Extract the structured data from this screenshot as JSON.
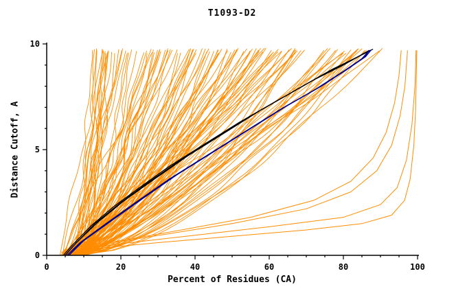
{
  "chart_data": {
    "type": "line",
    "title": "T1093-D2",
    "xlabel": "Percent of Residues (CA)",
    "ylabel": "Distance Cutoff, A",
    "xlim": [
      0,
      100
    ],
    "ylim": [
      0,
      10
    ],
    "x_ticks": [
      0,
      20,
      40,
      60,
      80,
      100
    ],
    "y_ticks": [
      0,
      5,
      10
    ],
    "x_minor_step": 5,
    "y_minor_step": 1,
    "grid": false,
    "legend": "none",
    "colors": {
      "ensemble": "#ff8c00",
      "outlier": "#ff8c00",
      "highlight_black": "#000000",
      "highlight_blue": "#00008b",
      "axis": "#000000",
      "background": "#ffffff"
    },
    "ensemble": {
      "name": "model-curves-orange",
      "count": 118,
      "seed": 7,
      "x_start_range": [
        3.5,
        10.5
      ],
      "x_top_min": 12,
      "x_top_max": 91,
      "x_top_bias": 1.15,
      "shape_exponent_range": [
        0.5,
        1.02
      ],
      "y_top_range": [
        9.55,
        9.8
      ]
    },
    "outlier_curves": [
      {
        "name": "low-quality-model-1",
        "points": [
          [
            4,
            0.1
          ],
          [
            15,
            0.35
          ],
          [
            30,
            0.6
          ],
          [
            50,
            0.9
          ],
          [
            70,
            1.2
          ],
          [
            85,
            1.5
          ],
          [
            93,
            1.9
          ],
          [
            96.5,
            2.6
          ],
          [
            98,
            3.6
          ],
          [
            99,
            5.2
          ],
          [
            99.5,
            7.0
          ],
          [
            99.8,
            9.7
          ]
        ]
      },
      {
        "name": "low-quality-model-2",
        "points": [
          [
            4,
            0.15
          ],
          [
            20,
            0.55
          ],
          [
            40,
            0.95
          ],
          [
            60,
            1.35
          ],
          [
            80,
            1.8
          ],
          [
            90,
            2.4
          ],
          [
            94.5,
            3.2
          ],
          [
            97,
            4.5
          ],
          [
            98.5,
            6.2
          ],
          [
            99.3,
            8.0
          ],
          [
            99.6,
            9.7
          ]
        ]
      },
      {
        "name": "low-quality-model-3",
        "points": [
          [
            4.5,
            0.2
          ],
          [
            25,
            0.8
          ],
          [
            50,
            1.5
          ],
          [
            70,
            2.2
          ],
          [
            82,
            3.0
          ],
          [
            89,
            4.0
          ],
          [
            93,
            5.2
          ],
          [
            95.3,
            6.6
          ],
          [
            96.6,
            8.0
          ],
          [
            97.3,
            9.7
          ]
        ]
      },
      {
        "name": "low-quality-model-4",
        "points": [
          [
            4.5,
            0.25
          ],
          [
            30,
            1.0
          ],
          [
            55,
            1.8
          ],
          [
            72,
            2.6
          ],
          [
            82,
            3.5
          ],
          [
            88,
            4.6
          ],
          [
            91.5,
            5.8
          ],
          [
            93.8,
            7.2
          ],
          [
            95,
            8.5
          ],
          [
            95.6,
            9.7
          ]
        ]
      }
    ],
    "highlight_black_curves": [
      {
        "name": "best-model-black-1",
        "points": [
          [
            4.5,
            0
          ],
          [
            7,
            0.5
          ],
          [
            12,
            1.4
          ],
          [
            18,
            2.3
          ],
          [
            25,
            3.2
          ],
          [
            33,
            4.2
          ],
          [
            42,
            5.2
          ],
          [
            52,
            6.3
          ],
          [
            62,
            7.3
          ],
          [
            72,
            8.3
          ],
          [
            80,
            9.0
          ],
          [
            86,
            9.6
          ],
          [
            88,
            9.75
          ]
        ]
      },
      {
        "name": "best-model-black-2",
        "points": [
          [
            5,
            0
          ],
          [
            8,
            0.6
          ],
          [
            14,
            1.6
          ],
          [
            21,
            2.6
          ],
          [
            29,
            3.6
          ],
          [
            38,
            4.7
          ],
          [
            48,
            5.8
          ],
          [
            58,
            6.9
          ],
          [
            68,
            7.9
          ],
          [
            77,
            8.8
          ],
          [
            84,
            9.4
          ],
          [
            87.5,
            9.7
          ]
        ]
      },
      {
        "name": "best-model-black-3",
        "points": [
          [
            5,
            0
          ],
          [
            7.5,
            0.5
          ],
          [
            13,
            1.5
          ],
          [
            20,
            2.5
          ],
          [
            27,
            3.4
          ],
          [
            36,
            4.5
          ],
          [
            45,
            5.5
          ],
          [
            55,
            6.6
          ],
          [
            65,
            7.6
          ],
          [
            75,
            8.6
          ],
          [
            82,
            9.2
          ],
          [
            87,
            9.7
          ]
        ]
      }
    ],
    "highlight_blue_curves": [
      {
        "name": "reference-model-blue-1",
        "points": [
          [
            5.5,
            0
          ],
          [
            9,
            0.6
          ],
          [
            16,
            1.5
          ],
          [
            24,
            2.5
          ],
          [
            33,
            3.6
          ],
          [
            43,
            4.7
          ],
          [
            53,
            5.8
          ],
          [
            63,
            6.9
          ],
          [
            72,
            7.8
          ],
          [
            80,
            8.7
          ],
          [
            85,
            9.3
          ],
          [
            87,
            9.7
          ]
        ]
      },
      {
        "name": "reference-model-blue-2",
        "points": [
          [
            6,
            0
          ],
          [
            10,
            0.7
          ],
          [
            18,
            1.7
          ],
          [
            26,
            2.7
          ],
          [
            35,
            3.8
          ],
          [
            45,
            4.9
          ],
          [
            55,
            6.0
          ],
          [
            65,
            7.1
          ],
          [
            74,
            8.0
          ],
          [
            81,
            8.8
          ],
          [
            86,
            9.4
          ],
          [
            87.5,
            9.72
          ]
        ]
      },
      {
        "name": "reference-model-blue-3",
        "points": [
          [
            5.5,
            0
          ],
          [
            9.5,
            0.65
          ],
          [
            17,
            1.6
          ],
          [
            25,
            2.6
          ],
          [
            34,
            3.7
          ],
          [
            44,
            4.8
          ],
          [
            54,
            5.9
          ],
          [
            64,
            7.0
          ],
          [
            73,
            7.9
          ],
          [
            80.5,
            8.75
          ],
          [
            85.5,
            9.35
          ],
          [
            87,
            9.7
          ]
        ]
      }
    ]
  }
}
